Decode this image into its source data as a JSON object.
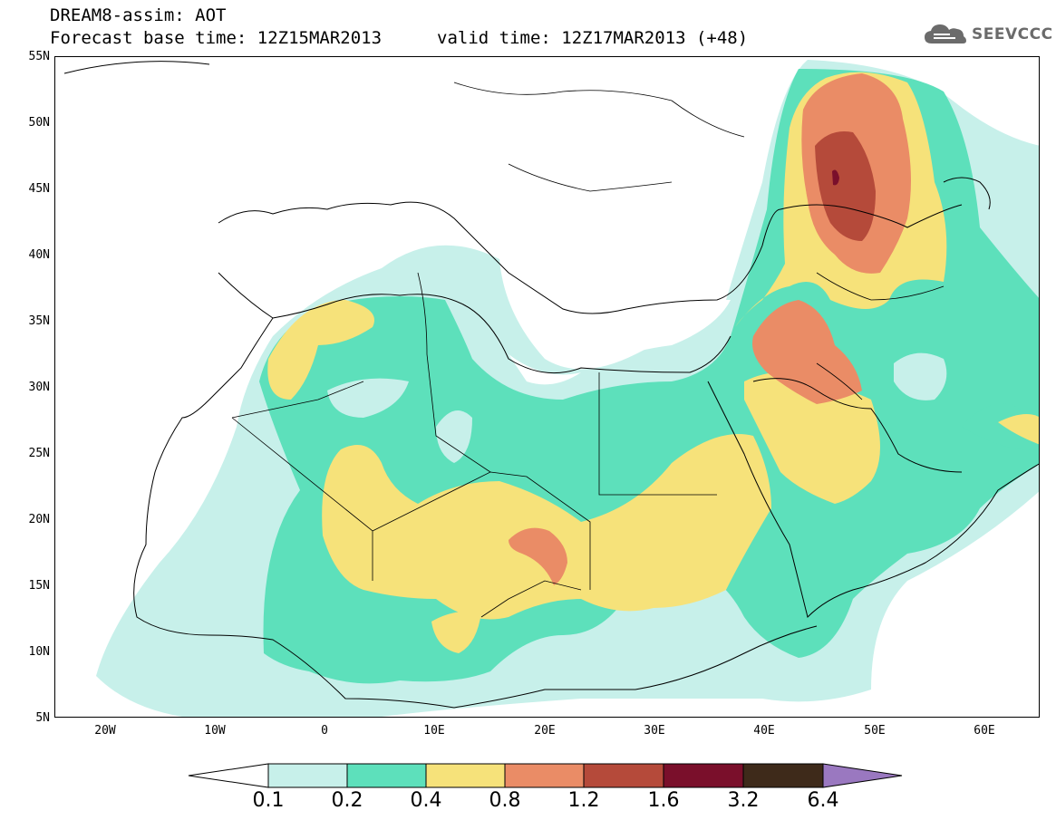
{
  "header": {
    "title_line_1": "DREAM8-assim: AOT",
    "title_line_2": "Forecast base time: 12Z15MAR2013",
    "valid_time": "valid time: 12Z17MAR2013 (+48)"
  },
  "logo": {
    "text": "SEEVCCC",
    "icon": "cloud-icon"
  },
  "map": {
    "variable": "AOT",
    "lon_range": [
      -25,
      65
    ],
    "lat_range": [
      5,
      55
    ],
    "lat_ticks": [
      "55N",
      "50N",
      "45N",
      "40N",
      "35N",
      "30N",
      "25N",
      "20N",
      "15N",
      "10N",
      "5N"
    ],
    "lon_ticks": [
      "20W",
      "10W",
      "0",
      "10E",
      "20E",
      "30E",
      "40E",
      "50E",
      "60E"
    ]
  },
  "colorbar": {
    "labels": [
      "0.1",
      "0.2",
      "0.4",
      "0.8",
      "1.2",
      "1.6",
      "3.2",
      "6.4"
    ],
    "colors": [
      "#c7f0ea",
      "#5de0bb",
      "#f6e27a",
      "#ea8c66",
      "#b54a3a",
      "#7a0f2b",
      "#3e2a1a",
      "#9a78c0"
    ]
  },
  "colors": {
    "level_0_1": "#c7f0ea",
    "level_0_2": "#5de0bb",
    "level_0_4": "#f6e27a",
    "level_0_8": "#ea8c66",
    "level_1_2": "#b54a3a",
    "level_1_6": "#7a0f2b"
  }
}
